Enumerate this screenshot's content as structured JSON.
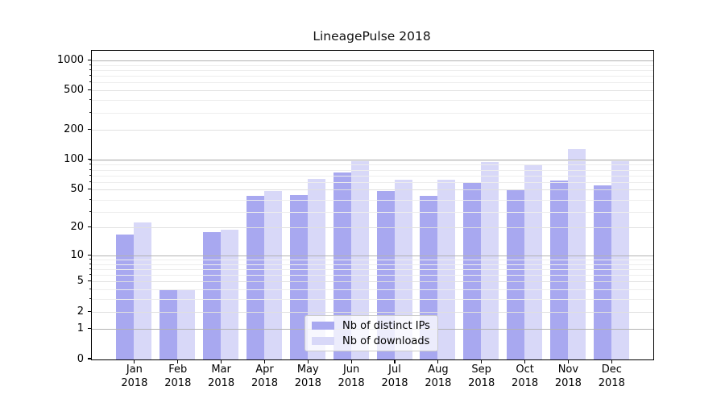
{
  "chart_data": {
    "type": "bar",
    "title": "LineagePulse 2018",
    "categories": [
      "Jan",
      "Feb",
      "Mar",
      "Apr",
      "May",
      "Jun",
      "Jul",
      "Aug",
      "Sep",
      "Oct",
      "Nov",
      "Dec"
    ],
    "category_year": "2018",
    "series": [
      {
        "name": "Nb of distinct IPs",
        "color": "#a8a8f0",
        "values": [
          17,
          4,
          18,
          43,
          44,
          74,
          48,
          43,
          59,
          49,
          62,
          55
        ]
      },
      {
        "name": "Nb of downloads",
        "color": "#d8d8f8",
        "values": [
          23,
          4,
          19,
          48,
          64,
          100,
          63,
          63,
          95,
          88,
          128,
          99
        ]
      }
    ],
    "y_axis": {
      "scale": "log10(1+v)",
      "tick_values": [
        0,
        1,
        2,
        5,
        10,
        20,
        50,
        100,
        200,
        500,
        1000
      ],
      "major_tick_values": [
        1,
        10,
        100,
        1000
      ],
      "ylim_top": 1280
    },
    "legend": {
      "position": "bottom-center"
    },
    "grid": true,
    "colors": {
      "major_grid": "#b2b2b2",
      "labeled_grid": "#e0e0e0",
      "minor_grid": "#ededed",
      "axis": "#000000"
    }
  }
}
